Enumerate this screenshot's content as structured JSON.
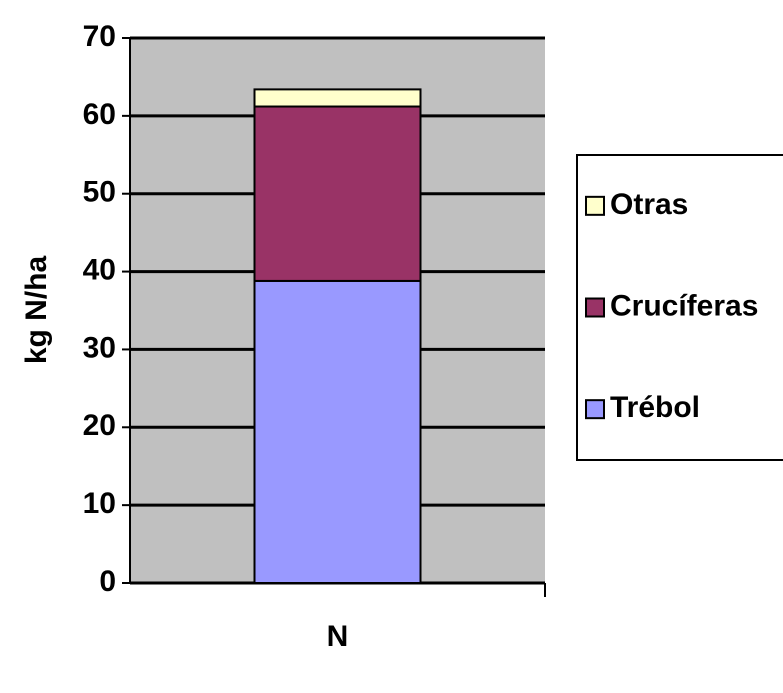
{
  "chart_data": {
    "type": "stacked_bar",
    "y_label": "kg N/ha",
    "categories": [
      "N"
    ],
    "series": [
      {
        "name": "Trébol",
        "color": "#9999ff",
        "values": [
          38.8
        ]
      },
      {
        "name": "Crucíferas",
        "color": "#993366",
        "values": [
          22.4
        ]
      },
      {
        "name": "Otras",
        "color": "#ffffcc",
        "values": [
          2.2
        ]
      }
    ],
    "ylim": [
      0,
      70
    ],
    "yticks": [
      0,
      10,
      20,
      30,
      40,
      50,
      60,
      70
    ],
    "grid": true,
    "legend": "right"
  }
}
